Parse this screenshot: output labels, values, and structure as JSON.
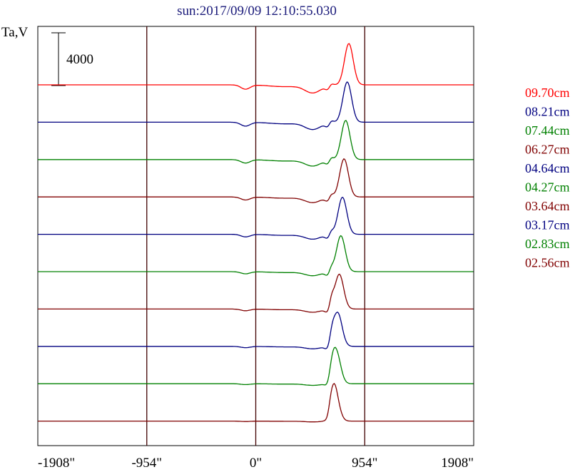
{
  "chart_data": {
    "type": "line",
    "title": "sun:2017/09/09 12:10:55.030",
    "ylabel": "Ta,V",
    "scale_bar_label": "4000",
    "scale_bar_value": 4000,
    "x_ticks": [
      "-1908\"",
      "-954\"",
      "0\"",
      "954\"",
      "1908\""
    ],
    "xlim": [
      -1908,
      1908
    ],
    "vertical_lines_x": [
      -954,
      0,
      954
    ],
    "grid": false,
    "legend_position": "right",
    "series": [
      {
        "name": "09.70cm",
        "color": "#ff0000"
      },
      {
        "name": "08.21cm",
        "color": "#000080"
      },
      {
        "name": "07.44cm",
        "color": "#008000"
      },
      {
        "name": "06.27cm",
        "color": "#800000"
      },
      {
        "name": "04.64cm",
        "color": "#000080"
      },
      {
        "name": "04.27cm",
        "color": "#008000"
      },
      {
        "name": "03.64cm",
        "color": "#800000"
      },
      {
        "name": "03.17cm",
        "color": "#000080"
      },
      {
        "name": "02.83cm",
        "color": "#008000"
      },
      {
        "name": "02.56cm",
        "color": "#800000"
      }
    ]
  }
}
